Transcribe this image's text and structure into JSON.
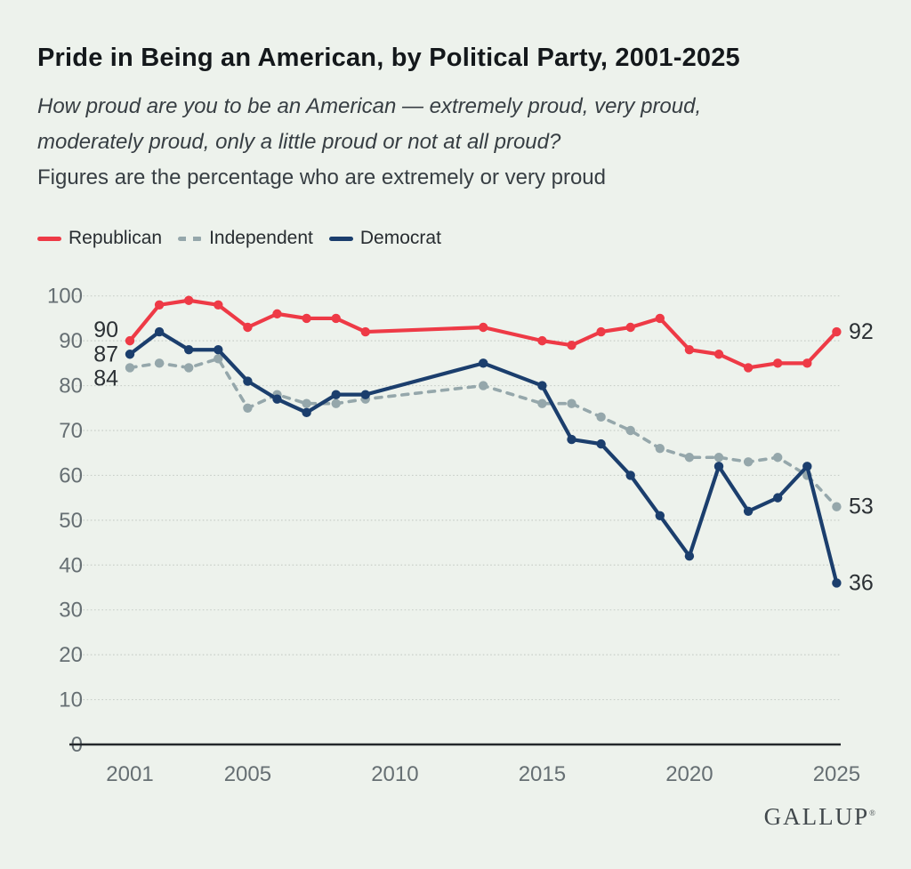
{
  "header": {
    "title": "Pride in Being an American, by Political Party, 2001-2025",
    "subtitle_line1": "How proud are you to be an American — extremely proud, very proud,",
    "subtitle_line2": "moderately proud, only a little proud or not at all proud?",
    "note": "Figures are the percentage who are extremely or very proud"
  },
  "legend": [
    {
      "label": "Republican",
      "color": "#ee3a46",
      "style": "solid"
    },
    {
      "label": "Independent",
      "color": "#95a7ab",
      "style": "dashed"
    },
    {
      "label": "Democrat",
      "color": "#1b3e6d",
      "style": "solid"
    }
  ],
  "chart_data": {
    "type": "line",
    "title": "Pride in Being an American, by Political Party, 2001-2025",
    "xlabel": "",
    "ylabel": "",
    "x": [
      2001,
      2002,
      2003,
      2004,
      2005,
      2006,
      2007,
      2008,
      2009,
      2013,
      2015,
      2016,
      2017,
      2018,
      2019,
      2020,
      2021,
      2022,
      2023,
      2024,
      2025
    ],
    "series": [
      {
        "name": "Republican",
        "color": "#ee3a46",
        "dash": false,
        "values": [
          90,
          98,
          99,
          98,
          93,
          96,
          95,
          95,
          92,
          93,
          90,
          89,
          92,
          93,
          95,
          88,
          87,
          84,
          85,
          85,
          92
        ]
      },
      {
        "name": "Independent",
        "color": "#95a7ab",
        "dash": true,
        "values": [
          84,
          85,
          84,
          86,
          75,
          78,
          76,
          76,
          77,
          80,
          76,
          76,
          73,
          70,
          66,
          64,
          64,
          63,
          64,
          60,
          53
        ]
      },
      {
        "name": "Democrat",
        "color": "#1b3e6d",
        "dash": false,
        "values": [
          87,
          92,
          88,
          88,
          81,
          77,
          74,
          78,
          78,
          85,
          80,
          68,
          67,
          60,
          51,
          42,
          62,
          52,
          55,
          62,
          36
        ]
      }
    ],
    "ylim": [
      0,
      100
    ],
    "ytick_step": 10,
    "xticks": [
      2001,
      2005,
      2010,
      2015,
      2020,
      2025
    ],
    "grid": true,
    "legend_position": "top-left",
    "annotations": [
      {
        "text": "90",
        "year": 2001,
        "value": 90,
        "side": "left"
      },
      {
        "text": "87",
        "year": 2001,
        "value": 87,
        "side": "left"
      },
      {
        "text": "84",
        "year": 2001,
        "value": 84,
        "side": "left"
      },
      {
        "text": "92",
        "year": 2025,
        "value": 92,
        "side": "right"
      },
      {
        "text": "53",
        "year": 2025,
        "value": 53,
        "side": "right"
      },
      {
        "text": "36",
        "year": 2025,
        "value": 36,
        "side": "right"
      }
    ]
  },
  "footer": {
    "brand": "GALLUP",
    "registered_mark": "®"
  }
}
